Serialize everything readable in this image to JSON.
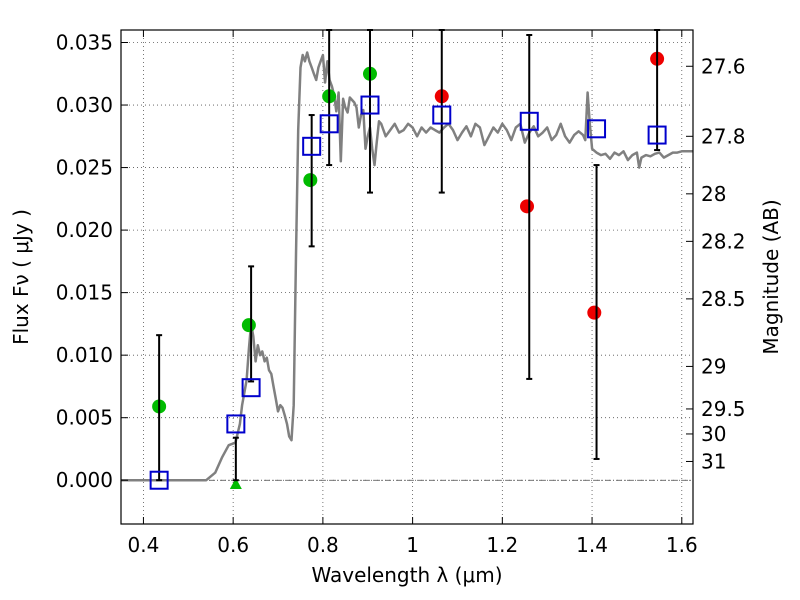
{
  "chart_data": {
    "type": "scatter",
    "xlabel": "Wavelength  λ (μm)",
    "ylabel": "Flux  Fν  ( μJy )",
    "y2label": "Magnitude (AB)",
    "xlim": [
      0.35,
      1.625
    ],
    "ylim": [
      -0.0035,
      0.036
    ],
    "grid": true,
    "x_ticks": [
      0.4,
      0.6,
      0.8,
      1.0,
      1.2,
      1.4,
      1.6
    ],
    "x_tick_labels": [
      "0.4",
      "0.6",
      "0.8",
      "1",
      "1.2",
      "1.4",
      "1.6"
    ],
    "y_ticks": [
      0.0,
      0.005,
      0.01,
      0.015,
      0.02,
      0.025,
      0.03,
      0.035
    ],
    "y_tick_labels": [
      "0.000",
      "0.005",
      "0.010",
      "0.015",
      "0.020",
      "0.025",
      "0.030",
      "0.035"
    ],
    "y2_ticks": [
      {
        "label": "27.6",
        "flux": 0.0331
      },
      {
        "label": "27.8",
        "flux": 0.0275
      },
      {
        "label": "28",
        "flux": 0.0229
      },
      {
        "label": "28.2",
        "flux": 0.0191
      },
      {
        "label": "28.5",
        "flux": 0.0145
      },
      {
        "label": "29",
        "flux": 0.0091
      },
      {
        "label": "29.5",
        "flux": 0.0057
      },
      {
        "label": "30",
        "flux": 0.0037
      },
      {
        "label": "31",
        "flux": 0.0015
      }
    ],
    "colors": {
      "model": "#808080",
      "green": "#00bb00",
      "red": "#ee0000",
      "square": "#0000cc",
      "errorbar": "#000000",
      "grid": "#555555",
      "zero_line": "#444444"
    },
    "series": [
      {
        "marker": "model-line",
        "x": [
          0.35,
          0.54,
          0.56,
          0.575,
          0.59,
          0.605,
          0.615,
          0.62,
          0.63,
          0.635,
          0.64,
          0.645,
          0.65,
          0.655,
          0.66,
          0.665,
          0.67,
          0.675,
          0.68,
          0.685,
          0.69,
          0.695,
          0.7,
          0.705,
          0.71,
          0.715,
          0.72,
          0.725,
          0.73,
          0.735,
          0.74,
          0.745,
          0.75,
          0.755,
          0.76,
          0.765,
          0.77,
          0.775,
          0.78,
          0.785,
          0.79,
          0.795,
          0.8,
          0.805,
          0.81,
          0.815,
          0.82,
          0.825,
          0.83,
          0.835,
          0.84,
          0.845,
          0.85,
          0.855,
          0.86,
          0.87,
          0.875,
          0.88,
          0.885,
          0.89,
          0.895,
          0.9,
          0.905,
          0.91,
          0.915,
          0.92,
          0.925,
          0.93,
          0.94,
          0.95,
          0.96,
          0.97,
          0.98,
          0.99,
          1.0,
          1.01,
          1.02,
          1.03,
          1.04,
          1.05,
          1.06,
          1.07,
          1.08,
          1.09,
          1.1,
          1.11,
          1.12,
          1.13,
          1.14,
          1.15,
          1.16,
          1.17,
          1.18,
          1.19,
          1.2,
          1.21,
          1.22,
          1.23,
          1.24,
          1.25,
          1.26,
          1.27,
          1.28,
          1.29,
          1.3,
          1.31,
          1.32,
          1.33,
          1.34,
          1.35,
          1.36,
          1.37,
          1.38,
          1.385,
          1.39,
          1.395,
          1.4,
          1.41,
          1.42,
          1.43,
          1.44,
          1.45,
          1.46,
          1.47,
          1.48,
          1.49,
          1.5,
          1.505,
          1.51,
          1.52,
          1.53,
          1.54,
          1.55,
          1.56,
          1.57,
          1.58,
          1.59,
          1.6,
          1.625
        ],
        "y": [
          0.0,
          0.0,
          0.0006,
          0.0018,
          0.0028,
          0.003,
          0.0045,
          0.006,
          0.008,
          0.0105,
          0.0125,
          0.0115,
          0.0095,
          0.0108,
          0.01,
          0.0103,
          0.0095,
          0.0098,
          0.0088,
          0.0085,
          0.0075,
          0.0065,
          0.0055,
          0.006,
          0.0058,
          0.0052,
          0.0045,
          0.0035,
          0.0032,
          0.006,
          0.018,
          0.028,
          0.033,
          0.034,
          0.0335,
          0.0342,
          0.0335,
          0.033,
          0.0325,
          0.032,
          0.033,
          0.0335,
          0.034,
          0.0318,
          0.0335,
          0.032,
          0.0315,
          0.0308,
          0.0295,
          0.031,
          0.0255,
          0.0305,
          0.0298,
          0.0294,
          0.0306,
          0.0302,
          0.0298,
          0.0282,
          0.0292,
          0.0296,
          0.0265,
          0.0275,
          0.0282,
          0.0265,
          0.0252,
          0.027,
          0.0287,
          0.0285,
          0.0275,
          0.028,
          0.0285,
          0.0278,
          0.028,
          0.0285,
          0.0282,
          0.0275,
          0.0282,
          0.0278,
          0.0282,
          0.028,
          0.0278,
          0.0282,
          0.0285,
          0.028,
          0.0272,
          0.0278,
          0.0283,
          0.0275,
          0.0285,
          0.0282,
          0.0268,
          0.0275,
          0.0282,
          0.0278,
          0.0285,
          0.028,
          0.0272,
          0.0282,
          0.0285,
          0.027,
          0.0278,
          0.0283,
          0.0275,
          0.0278,
          0.0282,
          0.0272,
          0.0276,
          0.0285,
          0.0275,
          0.027,
          0.0276,
          0.0279,
          0.0276,
          0.0272,
          0.031,
          0.0285,
          0.0265,
          0.0262,
          0.026,
          0.0261,
          0.0257,
          0.0262,
          0.026,
          0.0263,
          0.0256,
          0.026,
          0.0262,
          0.025,
          0.0258,
          0.026,
          0.0259,
          0.0261,
          0.0262,
          0.0258,
          0.026,
          0.0262,
          0.0262,
          0.0263,
          0.0263
        ]
      },
      {
        "marker": "green-circle",
        "points": [
          {
            "x": 0.435,
            "y": 0.0059,
            "yerr_low": null,
            "yerr_high": null
          },
          {
            "x": 0.635,
            "y": 0.0124,
            "yerr_low": null,
            "yerr_high": null
          },
          {
            "x": 0.772,
            "y": 0.024,
            "yerr_low": null,
            "yerr_high": null
          },
          {
            "x": 0.814,
            "y": 0.0307,
            "yerr_low": null,
            "yerr_high": null
          },
          {
            "x": 0.905,
            "y": 0.0325,
            "yerr_low": null,
            "yerr_high": null
          }
        ]
      },
      {
        "marker": "green-triangle",
        "points": [
          {
            "x": 0.606,
            "y": -0.0003,
            "yerr_low": null,
            "yerr_high": null
          }
        ]
      },
      {
        "marker": "red-circle",
        "points": [
          {
            "x": 1.065,
            "y": 0.0307,
            "yerr_low": null,
            "yerr_high": null
          },
          {
            "x": 1.255,
            "y": 0.0219,
            "yerr_low": null,
            "yerr_high": null
          },
          {
            "x": 1.405,
            "y": 0.0134,
            "yerr_low": null,
            "yerr_high": null
          },
          {
            "x": 1.545,
            "y": 0.0337,
            "yerr_low": null,
            "yerr_high": null
          }
        ]
      },
      {
        "marker": "blue-open-square",
        "points": [
          {
            "x": 0.435,
            "y": 0.0,
            "yerr_low": 0.0,
            "yerr_high": 0.0116
          },
          {
            "x": 0.606,
            "y": 0.0045,
            "yerr_low": 0.0,
            "yerr_high": 0.0034
          },
          {
            "x": 0.64,
            "y": 0.0074,
            "yerr_low": 0.0079,
            "yerr_high": 0.0171
          },
          {
            "x": 0.775,
            "y": 0.0267,
            "yerr_low": 0.0187,
            "yerr_high": 0.0292
          },
          {
            "x": 0.814,
            "y": 0.0285,
            "yerr_low": 0.0252,
            "yerr_high": 0.036
          },
          {
            "x": 0.905,
            "y": 0.03,
            "yerr_low": 0.023,
            "yerr_high": 0.036
          },
          {
            "x": 1.065,
            "y": 0.0292,
            "yerr_low": 0.023,
            "yerr_high": 0.036
          },
          {
            "x": 1.26,
            "y": 0.0287,
            "yerr_low": 0.0081,
            "yerr_high": 0.0356
          },
          {
            "x": 1.41,
            "y": 0.0281,
            "yerr_low": 0.0017,
            "yerr_high": 0.0252
          },
          {
            "x": 1.545,
            "y": 0.0276,
            "yerr_low": 0.0264,
            "yerr_high": 0.036
          }
        ]
      }
    ]
  }
}
